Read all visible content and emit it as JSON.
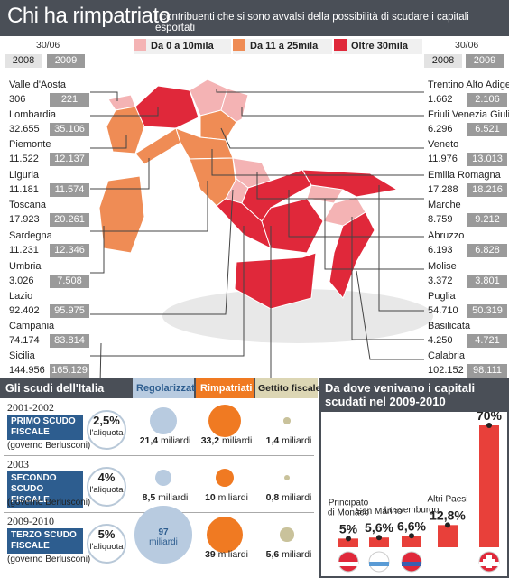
{
  "header": {
    "title": "Chi ha rimpatriato",
    "subtitle": "I contribuenti che si sono avvalsi della possibilità di scudare i capitali esportati"
  },
  "date_label": "30/06",
  "years": [
    "2008",
    "2009"
  ],
  "legend": [
    {
      "label": "Da 0 a 10mila",
      "color": "#f4b3b4"
    },
    {
      "label": "Da 11 a 25mila",
      "color": "#ef8c55"
    },
    {
      "label": "Oltre 30mila",
      "color": "#e0283a"
    }
  ],
  "colors": {
    "header_bg": "#4a4f57",
    "scudo_blue": "#2d5d8f",
    "regol": "#b8cbe0",
    "rimp": "#f07a22",
    "gettito": "#c9c29b"
  },
  "regions_left": [
    {
      "name": "Valle d'Aosta",
      "v2008": "306",
      "v2009": "221"
    },
    {
      "name": "Lombardia",
      "v2008": "32.655",
      "v2009": "35.106"
    },
    {
      "name": "Piemonte",
      "v2008": "11.522",
      "v2009": "12.137"
    },
    {
      "name": "Liguria",
      "v2008": "11.181",
      "v2009": "11.574"
    },
    {
      "name": "Toscana",
      "v2008": "17.923",
      "v2009": "20.261"
    },
    {
      "name": "Sardegna",
      "v2008": "11.231",
      "v2009": "12.346"
    },
    {
      "name": "Umbria",
      "v2008": "3.026",
      "v2009": "7.508"
    },
    {
      "name": "Lazio",
      "v2008": "92.402",
      "v2009": "95.975"
    },
    {
      "name": "Campania",
      "v2008": "74.174",
      "v2009": "83.814"
    },
    {
      "name": "Sicilia",
      "v2008": "144.956",
      "v2009": "165.129"
    }
  ],
  "regions_right": [
    {
      "name": "Trentino Alto Adige",
      "v2008": "1.662",
      "v2009": "2.106"
    },
    {
      "name": "Friuli Venezia Giulia",
      "v2008": "6.296",
      "v2009": "6.521"
    },
    {
      "name": "Veneto",
      "v2008": "11.976",
      "v2009": "13.013"
    },
    {
      "name": "Emilia Romagna",
      "v2008": "17.288",
      "v2009": "18.216"
    },
    {
      "name": "Marche",
      "v2008": "8.759",
      "v2009": "9.212"
    },
    {
      "name": "Abruzzo",
      "v2008": "6.193",
      "v2009": "6.828"
    },
    {
      "name": "Molise",
      "v2008": "3.372",
      "v2009": "3.801"
    },
    {
      "name": "Puglia",
      "v2008": "54.710",
      "v2009": "50.319"
    },
    {
      "name": "Basilicata",
      "v2008": "4.250",
      "v2009": "4.721"
    },
    {
      "name": "Calabria",
      "v2008": "102.152",
      "v2009": "98.111"
    }
  ],
  "scudi": {
    "title": "Gli scudi dell'Italia",
    "col_regol": "Regolarizzati",
    "col_rimp": "Rimpatriati",
    "col_gettito": "Gettito fiscale",
    "rows": [
      {
        "years": "2001-2002",
        "name": "PRIMO SCUDO FISCALE",
        "govt": "(governo Berlusconi)",
        "pct": "2,5%",
        "aliquota": "l'aliquota",
        "regol": "21,4",
        "rimp": "33,2",
        "gettito": "1,4",
        "unit": "miliardi"
      },
      {
        "years": "2003",
        "name": "SECONDO SCUDO FISCALE",
        "govt": "(governo Berlusconi)",
        "pct": "4%",
        "aliquota": "l'aliquota",
        "regol": "8,5",
        "rimp": "10",
        "gettito": "0,8",
        "unit": "miliardi"
      },
      {
        "years": "2009-2010",
        "name": "TERZO SCUDO FISCALE",
        "govt": "(governo Berlusconi)",
        "pct": "5%",
        "aliquota": "l'aliquota",
        "regol": "97",
        "rimp": "39",
        "gettito": "5,6",
        "unit": "miliardi"
      }
    ]
  },
  "origin": {
    "title": "Da dove venivano i capitali scudati nel 2009-2010"
  },
  "chart_data": {
    "type": "bar",
    "title": "Da dove venivano i capitali scudati nel 2009-2010",
    "categories": [
      "Principato di Monaco",
      "San Marino",
      "Lussemburgo",
      "Altri Paesi",
      "Svizzera"
    ],
    "values": [
      5,
      5.6,
      6.6,
      12.8,
      70
    ],
    "labels": [
      "5%",
      "5,6%",
      "6,6%",
      "12,8%",
      "70%"
    ],
    "ylim": [
      0,
      70
    ],
    "grid": false,
    "bar_color": "#e8403a"
  }
}
